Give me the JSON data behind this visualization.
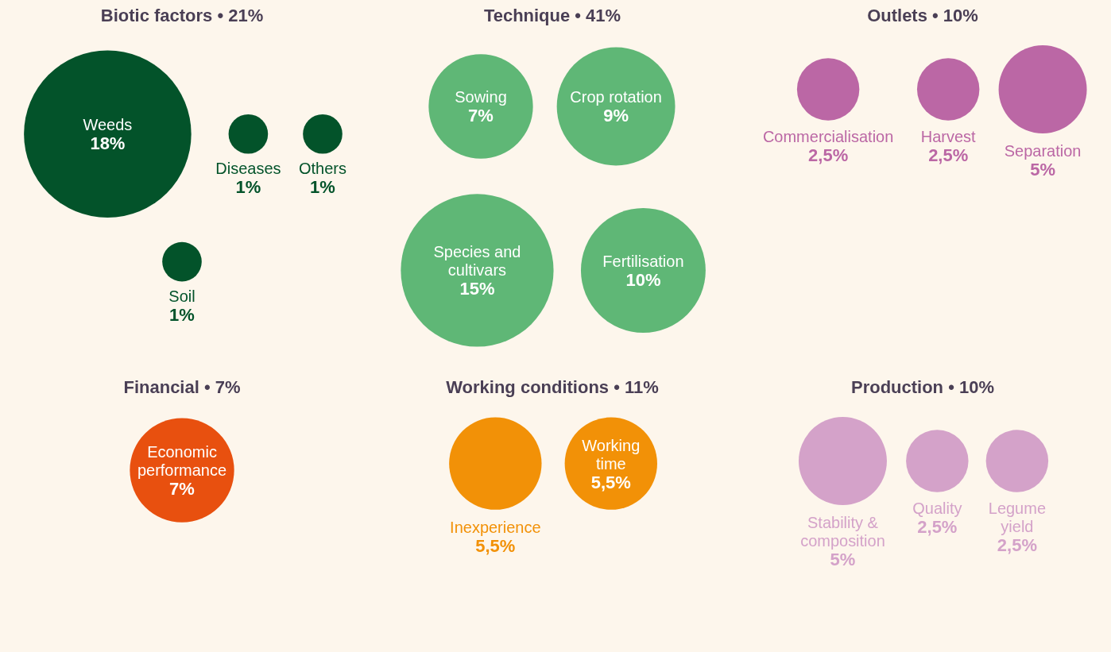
{
  "chart_data": [
    {
      "type": "other",
      "title": "Biotic factors • 21%",
      "categories": [
        "Weeds",
        "Diseases",
        "Others",
        "Soil"
      ],
      "values": [
        18,
        1,
        1,
        1
      ],
      "value_labels": [
        "18%",
        "1%",
        "1%",
        "1%"
      ],
      "colors": [
        "#03532a",
        "#03532a",
        "#03532a",
        "#03532a"
      ]
    },
    {
      "type": "other",
      "title": "Technique • 41%",
      "categories": [
        "Sowing",
        "Crop rotation",
        "Species and cultivars",
        "Fertilisation"
      ],
      "values": [
        7,
        9,
        15,
        10
      ],
      "value_labels": [
        "7%",
        "9%",
        "15%",
        "10%"
      ],
      "colors": [
        "#5fb776",
        "#5fb776",
        "#5fb776",
        "#5fb776"
      ]
    },
    {
      "type": "other",
      "title": "Outlets • 10%",
      "categories": [
        "Commercialisation",
        "Harvest",
        "Separation"
      ],
      "values": [
        2.5,
        2.5,
        5
      ],
      "value_labels": [
        "2,5%",
        "2,5%",
        "5%"
      ],
      "colors": [
        "#bb67a5",
        "#bb67a5",
        "#bb67a5"
      ]
    },
    {
      "type": "other",
      "title": "Financial • 7%",
      "categories": [
        "Economic performance"
      ],
      "values": [
        7
      ],
      "value_labels": [
        "7%"
      ],
      "colors": [
        "#e8500f"
      ]
    },
    {
      "type": "other",
      "title": "Working conditions • 11%",
      "categories": [
        "Inexperience",
        "Working time"
      ],
      "values": [
        5.5,
        5.5
      ],
      "value_labels": [
        "5,5%",
        "5,5%"
      ],
      "colors": [
        "#f29107",
        "#f29107"
      ]
    },
    {
      "type": "other",
      "title": "Production • 10%",
      "categories": [
        "Stability & composition",
        "Quality",
        "Legume yield"
      ],
      "values": [
        5,
        2.5,
        2.5
      ],
      "value_labels": [
        "5%",
        "2,5%",
        "2,5%"
      ],
      "colors": [
        "#d4a2c9",
        "#d4a2c9",
        "#d4a2c9"
      ]
    }
  ]
}
